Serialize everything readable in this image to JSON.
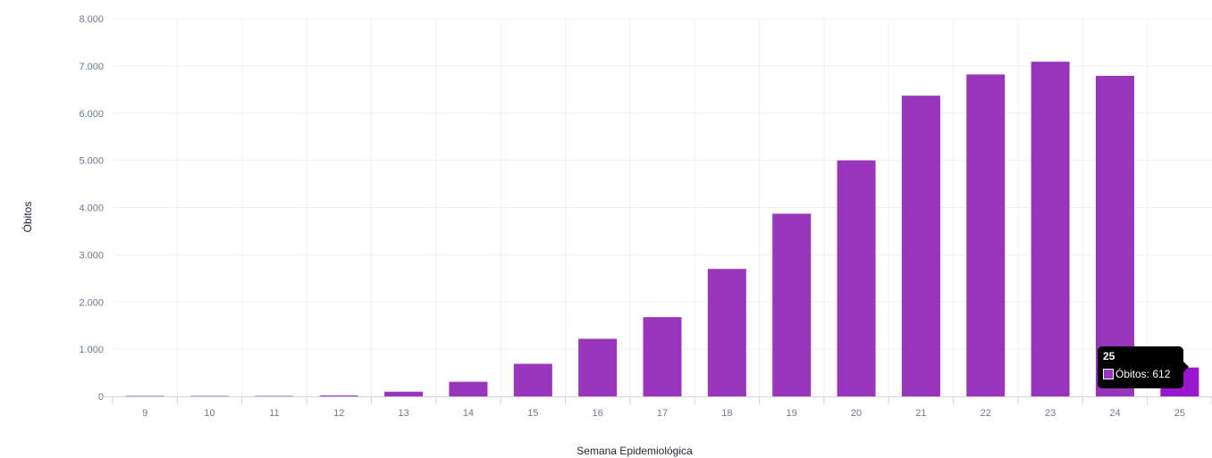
{
  "chart_data": {
    "type": "bar",
    "title": "",
    "xlabel": "Semana Epidemiológica",
    "ylabel": "Óbitos",
    "categories": [
      "9",
      "10",
      "11",
      "12",
      "13",
      "14",
      "15",
      "16",
      "17",
      "18",
      "19",
      "20",
      "21",
      "22",
      "23",
      "24",
      "25"
    ],
    "series": [
      {
        "name": "Óbitos",
        "values": [
          1,
          2,
          3,
          20,
          100,
          310,
          690,
          1220,
          1680,
          2700,
          3870,
          5000,
          6370,
          6820,
          7090,
          6790,
          612
        ],
        "color": "#9836bb",
        "highlight_color": "#9b17cf"
      }
    ],
    "ylim": [
      0,
      8000
    ],
    "y_ticks": [
      "0",
      "1.000",
      "2.000",
      "3.000",
      "4.000",
      "5.000",
      "6.000",
      "7.000",
      "8.000"
    ],
    "grid": true,
    "legend": "none",
    "highlighted_index": 16
  },
  "tooltip": {
    "title": "25",
    "text": "Óbitos: 612"
  }
}
